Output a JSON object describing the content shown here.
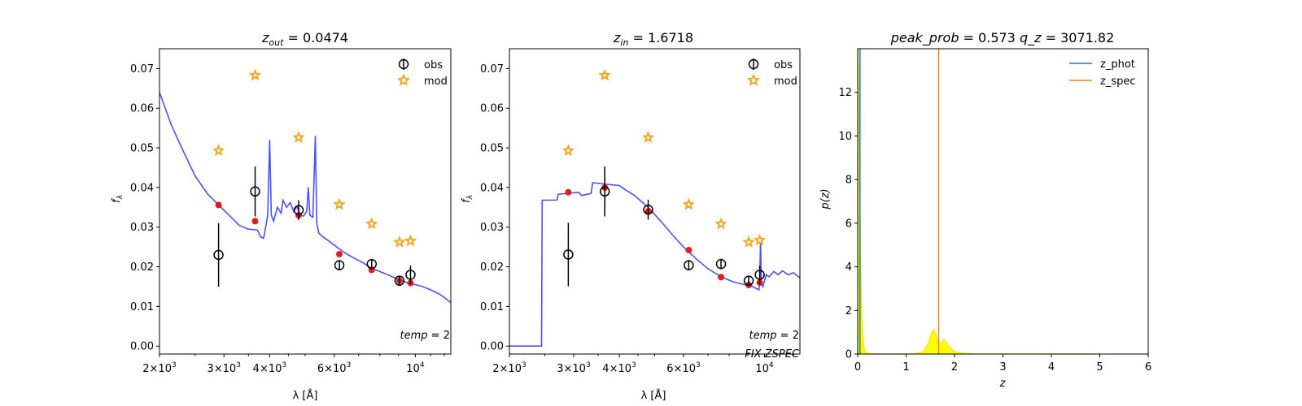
{
  "chart_data": [
    {
      "type": "scatter",
      "title_var": "z",
      "title_sub": "out",
      "title_value": "0.0474",
      "xlabel": "λ [Å]",
      "ylabel": "fλ",
      "xscale": "log",
      "xlim": [
        2000,
        12500
      ],
      "ylim": [
        -0.002,
        0.075
      ],
      "xticks": [
        {
          "v": 2000,
          "base": "2",
          "exp": "3"
        },
        {
          "v": 3000,
          "base": "3",
          "exp": "3"
        },
        {
          "v": 4000,
          "base": "4",
          "exp": "3"
        },
        {
          "v": 6000,
          "base": "6",
          "exp": "3"
        },
        {
          "v": 10000,
          "base": "10",
          "exp": "4"
        }
      ],
      "yticks": [
        "0.00",
        "0.01",
        "0.02",
        "0.03",
        "0.04",
        "0.05",
        "0.06",
        "0.07"
      ],
      "legend": {
        "position": "top-right",
        "obs_label": "obs",
        "mod_label": "mod"
      },
      "annotation_var": "temp",
      "annotation_value": "2",
      "annotation2": "",
      "colors": {
        "obs": "#000000",
        "mod": "#f5a623",
        "model_point": "#e31a1c",
        "spectrum": "#3b3bff"
      },
      "obs": [
        {
          "x": 2900,
          "y": 0.023,
          "err": 0.008
        },
        {
          "x": 3650,
          "y": 0.039,
          "err": 0.0063
        },
        {
          "x": 4800,
          "y": 0.0343,
          "err": 0.0025
        },
        {
          "x": 6200,
          "y": 0.0204,
          "err": 0.0013
        },
        {
          "x": 7600,
          "y": 0.0207,
          "err": 0.0013
        },
        {
          "x": 9050,
          "y": 0.0165,
          "err": 0.001
        },
        {
          "x": 9700,
          "y": 0.018,
          "err": 0.0023
        }
      ],
      "mod": [
        {
          "x": 2900,
          "y": 0.0493
        },
        {
          "x": 3650,
          "y": 0.0683
        },
        {
          "x": 4800,
          "y": 0.0526
        },
        {
          "x": 6200,
          "y": 0.0357
        },
        {
          "x": 7600,
          "y": 0.0308
        },
        {
          "x": 9050,
          "y": 0.0262
        },
        {
          "x": 9700,
          "y": 0.0265
        }
      ],
      "model_points": [
        {
          "x": 2900,
          "y": 0.0356
        },
        {
          "x": 3650,
          "y": 0.0315
        },
        {
          "x": 4800,
          "y": 0.033
        },
        {
          "x": 6200,
          "y": 0.0232
        },
        {
          "x": 7600,
          "y": 0.0192
        },
        {
          "x": 9050,
          "y": 0.0165
        },
        {
          "x": 9700,
          "y": 0.0159
        }
      ],
      "spectrum": [
        [
          2000,
          0.064
        ],
        [
          2150,
          0.056
        ],
        [
          2300,
          0.05
        ],
        [
          2500,
          0.043
        ],
        [
          2700,
          0.0385
        ],
        [
          2900,
          0.0356
        ],
        [
          3100,
          0.033
        ],
        [
          3300,
          0.0305
        ],
        [
          3500,
          0.0295
        ],
        [
          3700,
          0.0293
        ],
        [
          3780,
          0.0275
        ],
        [
          3850,
          0.0272
        ],
        [
          3900,
          0.03
        ],
        [
          3950,
          0.033
        ],
        [
          4000,
          0.052
        ],
        [
          4040,
          0.033
        ],
        [
          4100,
          0.0315
        ],
        [
          4200,
          0.035
        ],
        [
          4300,
          0.0335
        ],
        [
          4350,
          0.0368
        ],
        [
          4450,
          0.035
        ],
        [
          4550,
          0.0362
        ],
        [
          4650,
          0.034
        ],
        [
          4750,
          0.0352
        ],
        [
          4850,
          0.033
        ],
        [
          4950,
          0.0328
        ],
        [
          5050,
          0.034
        ],
        [
          5100,
          0.04
        ],
        [
          5150,
          0.033
        ],
        [
          5250,
          0.0325
        ],
        [
          5330,
          0.053
        ],
        [
          5380,
          0.031
        ],
        [
          5450,
          0.0285
        ],
        [
          5600,
          0.0275
        ],
        [
          5800,
          0.0265
        ],
        [
          6000,
          0.0255
        ],
        [
          6200,
          0.0245
        ],
        [
          6500,
          0.0232
        ],
        [
          6800,
          0.0222
        ],
        [
          7200,
          0.021
        ],
        [
          7600,
          0.0196
        ],
        [
          8000,
          0.0188
        ],
        [
          8500,
          0.0178
        ],
        [
          9000,
          0.0168
        ],
        [
          9500,
          0.016
        ],
        [
          10000,
          0.0155
        ],
        [
          10500,
          0.015
        ],
        [
          11000,
          0.0142
        ],
        [
          11700,
          0.013
        ],
        [
          12500,
          0.011
        ]
      ]
    },
    {
      "type": "scatter",
      "title_var": "z",
      "title_sub": "in",
      "title_value": "1.6718",
      "xlabel": "λ [Å]",
      "ylabel": "fλ",
      "xscale": "log",
      "xlim": [
        2000,
        12500
      ],
      "ylim": [
        -0.002,
        0.075
      ],
      "xticks": [
        {
          "v": 2000,
          "base": "2",
          "exp": "3"
        },
        {
          "v": 3000,
          "base": "3",
          "exp": "3"
        },
        {
          "v": 4000,
          "base": "4",
          "exp": "3"
        },
        {
          "v": 6000,
          "base": "6",
          "exp": "3"
        },
        {
          "v": 10000,
          "base": "10",
          "exp": "4"
        }
      ],
      "yticks": [
        "0.00",
        "0.01",
        "0.02",
        "0.03",
        "0.04",
        "0.05",
        "0.06",
        "0.07"
      ],
      "legend": {
        "position": "top-right",
        "obs_label": "obs",
        "mod_label": "mod"
      },
      "annotation_var": "temp",
      "annotation_value": "2",
      "annotation2": "FIX ZSPEC",
      "colors": {
        "obs": "#000000",
        "mod": "#f5a623",
        "model_point": "#e31a1c",
        "spectrum": "#3b3bff"
      },
      "obs": [
        {
          "x": 2900,
          "y": 0.0231,
          "err": 0.008
        },
        {
          "x": 3650,
          "y": 0.039,
          "err": 0.0063
        },
        {
          "x": 4800,
          "y": 0.0344,
          "err": 0.0025
        },
        {
          "x": 6200,
          "y": 0.0204,
          "err": 0.0013
        },
        {
          "x": 7600,
          "y": 0.0207,
          "err": 0.0013
        },
        {
          "x": 9050,
          "y": 0.0165,
          "err": 0.001
        },
        {
          "x": 9700,
          "y": 0.018,
          "err": 0.0023
        }
      ],
      "mod": [
        {
          "x": 2900,
          "y": 0.0493
        },
        {
          "x": 3650,
          "y": 0.0683
        },
        {
          "x": 4800,
          "y": 0.0526
        },
        {
          "x": 6200,
          "y": 0.0357
        },
        {
          "x": 7600,
          "y": 0.0308
        },
        {
          "x": 9050,
          "y": 0.0262
        },
        {
          "x": 9700,
          "y": 0.0267
        }
      ],
      "model_points": [
        {
          "x": 2900,
          "y": 0.0388
        },
        {
          "x": 3650,
          "y": 0.04
        },
        {
          "x": 4800,
          "y": 0.034
        },
        {
          "x": 6200,
          "y": 0.0242
        },
        {
          "x": 7600,
          "y": 0.0174
        },
        {
          "x": 9050,
          "y": 0.0154
        },
        {
          "x": 9700,
          "y": 0.016
        }
      ],
      "spectrum": [
        [
          2000,
          0.0
        ],
        [
          2450,
          0.0
        ],
        [
          2460,
          0.0368
        ],
        [
          2700,
          0.0368
        ],
        [
          2720,
          0.0383
        ],
        [
          3100,
          0.0388
        ],
        [
          3150,
          0.038
        ],
        [
          3350,
          0.0385
        ],
        [
          3380,
          0.0412
        ],
        [
          3700,
          0.0408
        ],
        [
          4000,
          0.0405
        ],
        [
          4100,
          0.0398
        ],
        [
          4400,
          0.038
        ],
        [
          4800,
          0.035
        ],
        [
          5200,
          0.0315
        ],
        [
          5600,
          0.028
        ],
        [
          6000,
          0.025
        ],
        [
          6500,
          0.022
        ],
        [
          7000,
          0.0195
        ],
        [
          7600,
          0.0175
        ],
        [
          8200,
          0.0162
        ],
        [
          8800,
          0.0155
        ],
        [
          9200,
          0.0152
        ],
        [
          9500,
          0.0145
        ],
        [
          9650,
          0.0142
        ],
        [
          9700,
          0.016
        ],
        [
          9750,
          0.027
        ],
        [
          9800,
          0.016
        ],
        [
          9900,
          0.015
        ],
        [
          10100,
          0.018
        ],
        [
          10300,
          0.0175
        ],
        [
          10600,
          0.0188
        ],
        [
          10900,
          0.018
        ],
        [
          11200,
          0.019
        ],
        [
          11600,
          0.018
        ],
        [
          12000,
          0.0185
        ],
        [
          12500,
          0.0172
        ]
      ]
    },
    {
      "type": "area",
      "title_var": "peak_prob",
      "title_value": "0.573",
      "title_var2": "q_z",
      "title_value2": "3071.82",
      "xlabel": "z",
      "ylabel": "p(z)",
      "xlim": [
        0,
        6
      ],
      "ylim": [
        0,
        14
      ],
      "xticks": [
        "0",
        "1",
        "2",
        "3",
        "4",
        "5",
        "6"
      ],
      "yticks": [
        "0",
        "2",
        "4",
        "6",
        "8",
        "10",
        "12"
      ],
      "legend": {
        "position": "top-right",
        "items": [
          {
            "label": "z_phot",
            "color": "#1f77b4"
          },
          {
            "label": "z_spec",
            "color": "#ff7f0e"
          }
        ]
      },
      "z_phot": 0.0474,
      "z_spec": 1.6718,
      "fill_color": "#ffff00",
      "pz": [
        [
          0.0,
          0.0
        ],
        [
          0.01,
          14.0
        ],
        [
          0.02,
          13.0
        ],
        [
          0.03,
          10.0
        ],
        [
          0.05,
          6.0
        ],
        [
          0.07,
          3.0
        ],
        [
          0.1,
          1.0
        ],
        [
          0.13,
          0.3
        ],
        [
          0.18,
          0.05
        ],
        [
          0.3,
          0.0
        ],
        [
          1.0,
          0.0
        ],
        [
          1.2,
          0.02
        ],
        [
          1.35,
          0.12
        ],
        [
          1.45,
          0.45
        ],
        [
          1.52,
          0.95
        ],
        [
          1.57,
          1.13
        ],
        [
          1.62,
          0.9
        ],
        [
          1.67,
          0.45
        ],
        [
          1.72,
          0.5
        ],
        [
          1.78,
          0.68
        ],
        [
          1.83,
          0.55
        ],
        [
          1.9,
          0.3
        ],
        [
          2.0,
          0.12
        ],
        [
          2.15,
          0.04
        ],
        [
          2.4,
          0.01
        ],
        [
          5.0,
          0.0
        ]
      ]
    }
  ]
}
